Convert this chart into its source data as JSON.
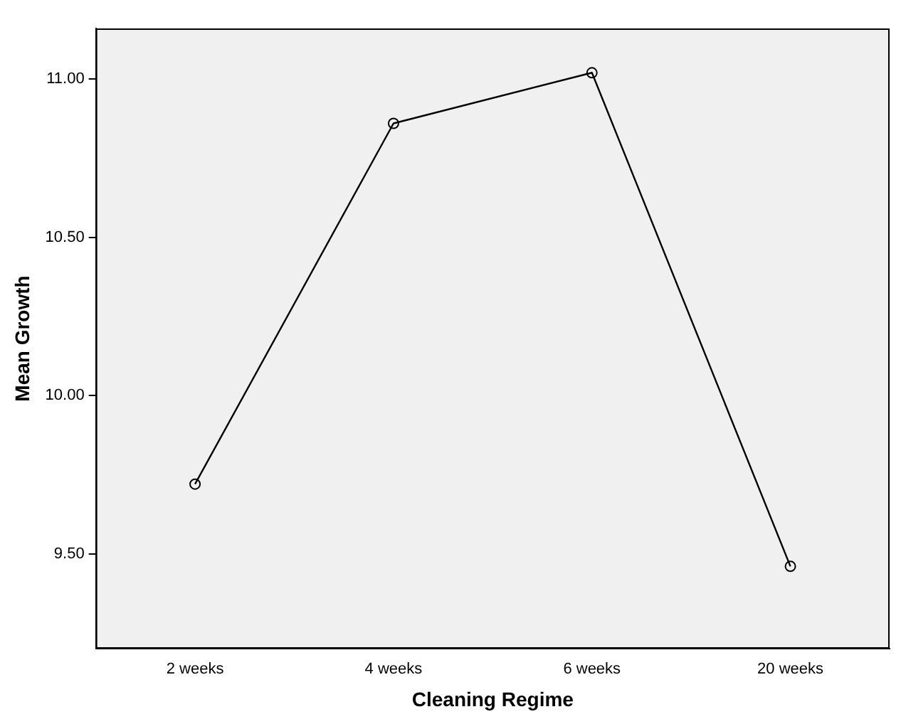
{
  "chart_data": {
    "type": "line",
    "xlabel": "Cleaning Regime",
    "ylabel": "Mean Growth",
    "categories": [
      "2 weeks",
      "4 weeks",
      "6 weeks",
      "20 weeks"
    ],
    "series": [
      {
        "color": "#000000",
        "values": [
          9.72,
          10.86,
          11.02,
          9.46
        ]
      }
    ],
    "ylim": [
      9.2,
      11.16
    ],
    "yticks": [
      {
        "value": 9.5,
        "label": "9.50"
      },
      {
        "value": 10,
        "label": "10.00"
      },
      {
        "value": 10.5,
        "label": "10.50"
      },
      {
        "value": 11,
        "label": "11.00"
      }
    ],
    "grid": false,
    "legend": false,
    "marker": "circle",
    "line_style": "solid"
  }
}
